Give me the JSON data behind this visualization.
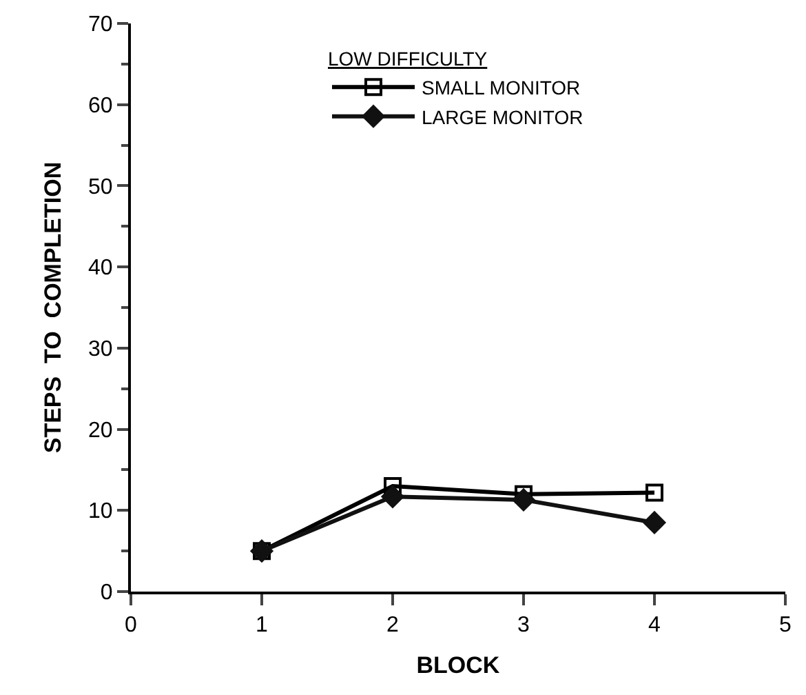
{
  "chart_data": {
    "type": "line",
    "xlabel": "BLOCK",
    "ylabel": "STEPS  TO  COMPLETION",
    "legend_title": "LOW DIFFICULTY",
    "x": [
      1,
      2,
      3,
      4
    ],
    "xlim": [
      0,
      5
    ],
    "xticks": [
      0,
      1,
      2,
      3,
      4,
      5
    ],
    "ylim": [
      0,
      70
    ],
    "yticks": [
      0,
      10,
      20,
      30,
      40,
      50,
      60,
      70
    ],
    "legend": "top",
    "line_style": "solid",
    "series": [
      {
        "name": "SMALL MONITOR",
        "color": "#000000",
        "marker": "square",
        "values": [
          5,
          13,
          12,
          12.2
        ]
      },
      {
        "name": "LARGE MONITOR",
        "color": "#111111",
        "marker": "diamond",
        "values": [
          5,
          11.7,
          11.3,
          8.5
        ]
      }
    ]
  }
}
